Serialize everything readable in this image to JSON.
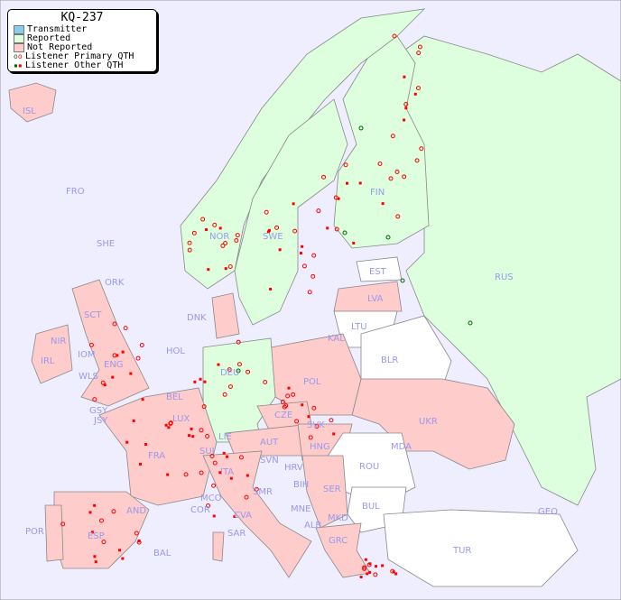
{
  "title": "KQ-237",
  "legend": [
    {
      "label": "Transmitter",
      "color": "#88ccee"
    },
    {
      "label": "Reported",
      "color": "#ddffdd"
    },
    {
      "label": "Not Reported",
      "color": "#ffcccc"
    },
    {
      "label": "Listener Primary QTH",
      "marker": "circle",
      "colors": [
        "#006600",
        "#ff0000"
      ]
    },
    {
      "label": "Listener Other QTH",
      "marker": "square",
      "colors": [
        "#006600",
        "#ff0000"
      ]
    }
  ],
  "colors": {
    "sea": "#eeeeff",
    "reported": "#ddffdd",
    "not_reported": "#ffcccc",
    "none": "#ffffff",
    "label": "#9999ee",
    "listener": "#ff0000",
    "listener_alt": "#006600"
  },
  "countries": [
    {
      "code": "ISL",
      "status": "not_reported"
    },
    {
      "code": "FRO",
      "status": "none"
    },
    {
      "code": "SHE",
      "status": "not_reported"
    },
    {
      "code": "ORK",
      "status": "not_reported"
    },
    {
      "code": "NOR",
      "status": "reported"
    },
    {
      "code": "SWE",
      "status": "reported"
    },
    {
      "code": "FIN",
      "status": "reported"
    },
    {
      "code": "RUS",
      "status": "reported"
    },
    {
      "code": "EST",
      "status": "none"
    },
    {
      "code": "LVA",
      "status": "not_reported"
    },
    {
      "code": "LTU",
      "status": "none"
    },
    {
      "code": "KAL",
      "status": "none"
    },
    {
      "code": "BLR",
      "status": "none"
    },
    {
      "code": "UKR",
      "status": "not_reported"
    },
    {
      "code": "MDA",
      "status": "none"
    },
    {
      "code": "ROU",
      "status": "none"
    },
    {
      "code": "BUL",
      "status": "none"
    },
    {
      "code": "TUR",
      "status": "none"
    },
    {
      "code": "GEO",
      "status": "none"
    },
    {
      "code": "POL",
      "status": "not_reported"
    },
    {
      "code": "DEU",
      "status": "reported"
    },
    {
      "code": "DNK",
      "status": "not_reported"
    },
    {
      "code": "HOL",
      "status": "not_reported"
    },
    {
      "code": "BEL",
      "status": "not_reported"
    },
    {
      "code": "LUX",
      "status": "not_reported"
    },
    {
      "code": "GSY",
      "status": "not_reported"
    },
    {
      "code": "JSY",
      "status": "not_reported"
    },
    {
      "code": "FRA",
      "status": "not_reported"
    },
    {
      "code": "SUI",
      "status": "not_reported"
    },
    {
      "code": "LIE",
      "status": "not_reported"
    },
    {
      "code": "AUT",
      "status": "not_reported"
    },
    {
      "code": "CZE",
      "status": "not_reported"
    },
    {
      "code": "SVK",
      "status": "not_reported"
    },
    {
      "code": "HNG",
      "status": "not_reported"
    },
    {
      "code": "SVN",
      "status": "not_reported"
    },
    {
      "code": "HRV",
      "status": "not_reported"
    },
    {
      "code": "BIH",
      "status": "not_reported"
    },
    {
      "code": "SER",
      "status": "not_reported"
    },
    {
      "code": "MNE",
      "status": "not_reported"
    },
    {
      "code": "ALB",
      "status": "not_reported"
    },
    {
      "code": "MKD",
      "status": "not_reported"
    },
    {
      "code": "GRC",
      "status": "not_reported"
    },
    {
      "code": "ITA",
      "status": "not_reported"
    },
    {
      "code": "SMR",
      "status": "not_reported"
    },
    {
      "code": "CVA",
      "status": "not_reported"
    },
    {
      "code": "MCO",
      "status": "not_reported"
    },
    {
      "code": "COR",
      "status": "not_reported"
    },
    {
      "code": "SAR",
      "status": "not_reported"
    },
    {
      "code": "AND",
      "status": "not_reported"
    },
    {
      "code": "ESP",
      "status": "not_reported"
    },
    {
      "code": "POR",
      "status": "not_reported"
    },
    {
      "code": "BAL",
      "status": "not_reported"
    },
    {
      "code": "IRL",
      "status": "not_reported"
    },
    {
      "code": "NIR",
      "status": "not_reported"
    },
    {
      "code": "SCT",
      "status": "not_reported"
    },
    {
      "code": "IOM",
      "status": "not_reported"
    },
    {
      "code": "WLS",
      "status": "not_reported"
    },
    {
      "code": "ENG",
      "status": "not_reported"
    }
  ]
}
